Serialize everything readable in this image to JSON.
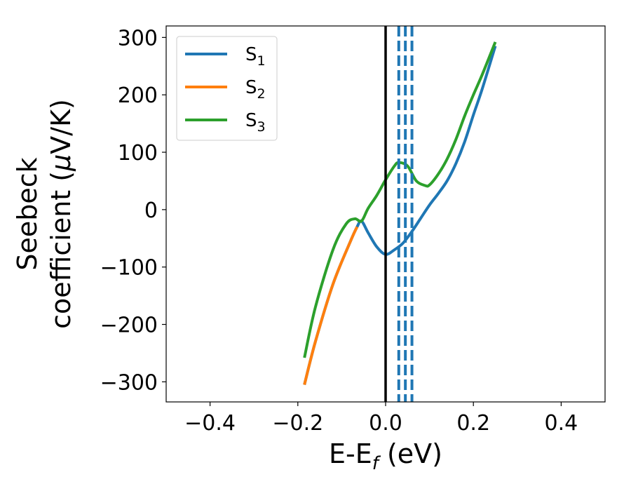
{
  "chart_data": {
    "type": "line",
    "xlabel_main": "E-E",
    "xlabel_sub": "f",
    "xlabel_unit": " (eV)",
    "ylabel_line1": "Seebeck",
    "ylabel_line2_pre": "coefficient  (",
    "ylabel_line2_mu": "μ",
    "ylabel_line2_post": "V/K)",
    "xlim": [
      -0.5,
      0.5
    ],
    "ylim": [
      -335,
      320
    ],
    "x_ticks": [
      -0.4,
      -0.2,
      0.0,
      0.2,
      0.4
    ],
    "x_tick_labels": [
      "−0.4",
      "−0.2",
      "0.0",
      "0.2",
      "0.4"
    ],
    "y_ticks": [
      -300,
      -200,
      -100,
      0,
      100,
      200,
      300
    ],
    "y_tick_labels": [
      "−300",
      "−200",
      "−100",
      "0",
      "100",
      "200",
      "300"
    ],
    "grid": false,
    "legend_position": "top-left",
    "series": [
      {
        "name": "S",
        "name_sub": "1",
        "color": "#1f77b4",
        "x": [
          -0.185,
          -0.16,
          -0.12,
          -0.08,
          -0.065,
          -0.055,
          -0.04,
          -0.02,
          0.0,
          0.02,
          0.04,
          0.06,
          0.08,
          0.1,
          0.12,
          0.14,
          0.16,
          0.18,
          0.2,
          0.22,
          0.25
        ],
        "y": [
          -305,
          -230,
          -130,
          -55,
          -30,
          -20,
          -40,
          -65,
          -78,
          -70,
          -58,
          -38,
          -15,
          8,
          28,
          50,
          80,
          118,
          165,
          210,
          285
        ]
      },
      {
        "name": "S",
        "name_sub": "2",
        "color": "#ff7f0e",
        "x": [
          -0.185,
          -0.16,
          -0.12,
          -0.08,
          -0.065
        ],
        "y": [
          -305,
          -230,
          -130,
          -55,
          -30
        ]
      },
      {
        "name": "S",
        "name_sub": "3",
        "color": "#2ca02c",
        "x": [
          -0.185,
          -0.16,
          -0.12,
          -0.09,
          -0.07,
          -0.055,
          -0.04,
          -0.02,
          0.0,
          0.02,
          0.03,
          0.05,
          0.07,
          0.09,
          0.1,
          0.12,
          0.14,
          0.16,
          0.18,
          0.2,
          0.22,
          0.25
        ],
        "y": [
          -258,
          -170,
          -70,
          -25,
          -16,
          -20,
          2,
          25,
          52,
          76,
          82,
          76,
          50,
          42,
          43,
          62,
          88,
          122,
          163,
          200,
          235,
          292
        ]
      }
    ],
    "vertical_lines": [
      {
        "x": 0.0,
        "color": "#000000",
        "style": "solid"
      },
      {
        "x": 0.03,
        "color": "#1f77b4",
        "style": "dashed"
      },
      {
        "x": 0.045,
        "color": "#1f77b4",
        "style": "dashed"
      },
      {
        "x": 0.06,
        "color": "#1f77b4",
        "style": "dashed"
      }
    ]
  }
}
